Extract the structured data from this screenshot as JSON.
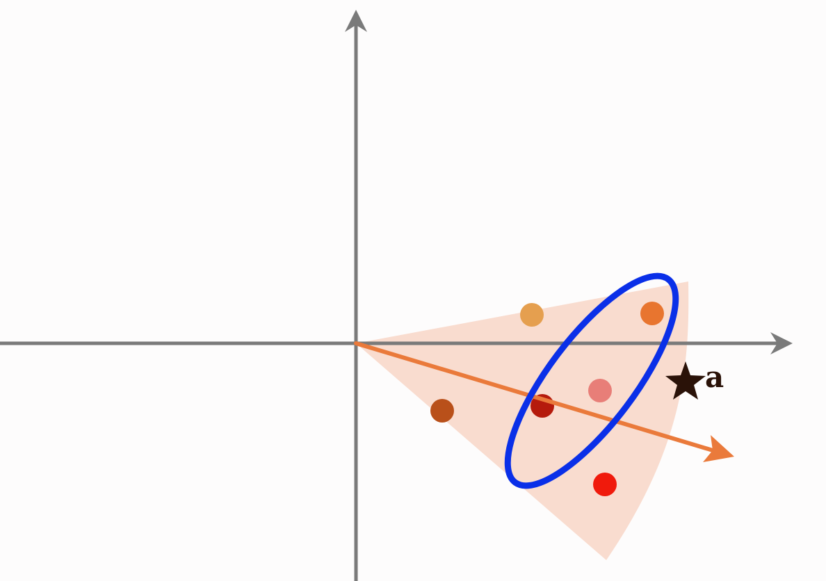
{
  "diagram": {
    "star_label": "a",
    "colors": {
      "background": "#fdfcfc",
      "axes": "#7a7a7a",
      "cone_fill": "#f9dccf",
      "direction_arrow": "#ea7a3b",
      "ellipse": "#0a2fe8",
      "star": "#2a1208"
    },
    "points": [
      {
        "name": "point-light-orange",
        "color": "#e59f4f"
      },
      {
        "name": "point-orange",
        "color": "#e8752f"
      },
      {
        "name": "point-pink",
        "color": "#e87e78"
      },
      {
        "name": "point-dark-red",
        "color": "#b51a0c"
      },
      {
        "name": "point-brown",
        "color": "#b9501a"
      },
      {
        "name": "point-red",
        "color": "#f01a0c"
      }
    ]
  }
}
